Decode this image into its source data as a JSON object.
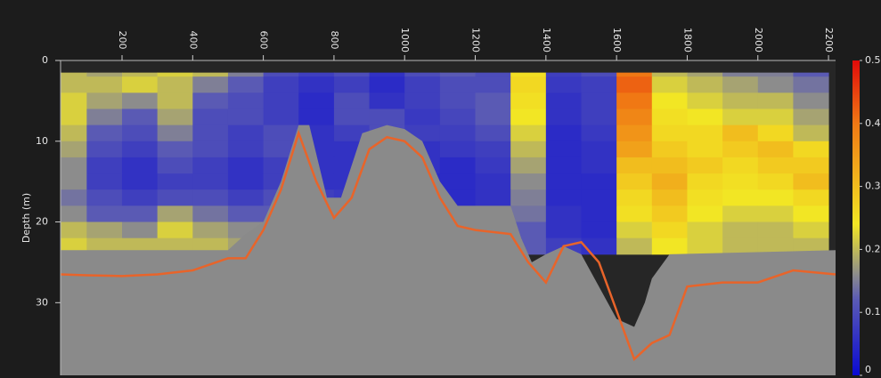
{
  "chart_data": {
    "type": "heatmap",
    "ylabel": "Depth (m)",
    "xlim": [
      26,
      2220
    ],
    "xticks": [
      200,
      400,
      600,
      800,
      1000,
      1200,
      1400,
      1600,
      1800,
      2000,
      2200
    ],
    "ylim": [
      0,
      39
    ],
    "yticks": [
      0,
      10,
      20,
      30
    ],
    "y_inverted": true,
    "data_top": 1.5,
    "columns": [
      0,
      100,
      200,
      300,
      400,
      500,
      600,
      700,
      800,
      900,
      1000,
      1100,
      1200,
      1300,
      1400,
      1500,
      1600,
      1700,
      1800,
      1900,
      2000,
      2100
    ],
    "column_width": 100,
    "rows": [
      2,
      4,
      6,
      8,
      10,
      12,
      14,
      16,
      18,
      20,
      22,
      24
    ],
    "row_height": 2,
    "z": [
      [
        0.2,
        0.18,
        0.2,
        0.22,
        0.2,
        0.15,
        0.1,
        0.08,
        0.1,
        0.06,
        0.1,
        0.12,
        0.1,
        0.25,
        0.08,
        0.1,
        0.4,
        0.2,
        0.18,
        0.15,
        0.15,
        0.12
      ],
      [
        0.2,
        0.2,
        0.22,
        0.2,
        0.15,
        0.12,
        0.08,
        0.06,
        0.08,
        0.05,
        0.08,
        0.1,
        0.1,
        0.26,
        0.07,
        0.08,
        0.42,
        0.22,
        0.2,
        0.18,
        0.16,
        0.14
      ],
      [
        0.22,
        0.18,
        0.16,
        0.2,
        0.12,
        0.1,
        0.08,
        0.05,
        0.1,
        0.06,
        0.08,
        0.1,
        0.12,
        0.25,
        0.06,
        0.08,
        0.4,
        0.24,
        0.22,
        0.2,
        0.2,
        0.16
      ],
      [
        0.22,
        0.15,
        0.12,
        0.18,
        0.1,
        0.1,
        0.08,
        0.05,
        0.1,
        0.1,
        0.07,
        0.09,
        0.12,
        0.24,
        0.06,
        0.08,
        0.38,
        0.25,
        0.24,
        0.22,
        0.22,
        0.18
      ],
      [
        0.2,
        0.12,
        0.1,
        0.15,
        0.1,
        0.08,
        0.1,
        0.06,
        0.08,
        0.1,
        0.08,
        0.08,
        0.1,
        0.22,
        0.05,
        0.07,
        0.36,
        0.26,
        0.26,
        0.3,
        0.26,
        0.2
      ],
      [
        0.18,
        0.1,
        0.08,
        0.12,
        0.1,
        0.08,
        0.1,
        0.06,
        0.06,
        0.08,
        0.06,
        0.07,
        0.08,
        0.2,
        0.05,
        0.06,
        0.34,
        0.28,
        0.26,
        0.28,
        0.3,
        0.26
      ],
      [
        0.16,
        0.08,
        0.06,
        0.1,
        0.08,
        0.06,
        0.08,
        0.06,
        0.06,
        0.08,
        0.06,
        0.05,
        0.07,
        0.18,
        0.05,
        0.06,
        0.3,
        0.3,
        0.28,
        0.26,
        0.28,
        0.28
      ],
      [
        0.16,
        0.08,
        0.06,
        0.08,
        0.08,
        0.06,
        0.08,
        0.06,
        0.06,
        0.08,
        0.05,
        0.05,
        0.06,
        0.16,
        0.05,
        0.05,
        0.28,
        0.32,
        0.26,
        0.25,
        0.26,
        0.3
      ],
      [
        0.14,
        0.1,
        0.08,
        0.1,
        0.1,
        0.08,
        0.1,
        0.08,
        0.07,
        0.08,
        0.06,
        0.05,
        0.06,
        0.15,
        0.05,
        0.05,
        0.26,
        0.3,
        0.25,
        0.24,
        0.24,
        0.26
      ],
      [
        0.16,
        0.12,
        0.12,
        0.18,
        0.14,
        0.12,
        0.12,
        0.1,
        0.08,
        0.08,
        0.06,
        0.06,
        0.08,
        0.14,
        0.06,
        0.05,
        0.25,
        0.28,
        0.24,
        0.22,
        0.22,
        0.24
      ],
      [
        0.2,
        0.18,
        0.16,
        0.22,
        0.18,
        0.16,
        0.14,
        0.1,
        0.08,
        0.08,
        0.06,
        0.06,
        0.1,
        0.12,
        0.06,
        0.05,
        0.22,
        0.26,
        0.22,
        0.2,
        0.2,
        0.22
      ],
      [
        0.22,
        0.2,
        0.2,
        0.2,
        0.2,
        0.18,
        0.14,
        0.1,
        0.08,
        0.08,
        0.08,
        0.08,
        0.1,
        0.12,
        0.08,
        0.06,
        0.2,
        0.24,
        0.22,
        0.2,
        0.2,
        0.2
      ]
    ],
    "colormap": [
      [
        0,
        "#0a0ad2"
      ],
      [
        0.12,
        "#5a5ab4"
      ],
      [
        0.16,
        "#8c8c8c"
      ],
      [
        0.24,
        "#f2e624"
      ],
      [
        0.4,
        "#f07814"
      ],
      [
        0.5,
        "#e00a0a"
      ]
    ],
    "zlim": [
      0,
      0.5
    ],
    "zticks": [
      0,
      0.1,
      0.2,
      0.3,
      0.4,
      0.5
    ],
    "seabed": {
      "color": "#8a8a8a",
      "x": [
        26,
        500,
        550,
        600,
        650,
        700,
        730,
        780,
        820,
        880,
        950,
        1000,
        1050,
        1100,
        1150,
        1300,
        1330,
        1360,
        1400,
        1450,
        1500,
        1550,
        1600,
        1650,
        1680,
        1700,
        1750,
        2220
      ],
      "values": [
        23.5,
        23.5,
        21.5,
        20,
        15,
        8,
        8,
        17,
        17,
        9,
        8,
        8.5,
        10,
        15,
        18,
        18,
        22,
        25,
        24,
        23,
        24,
        28,
        32,
        33,
        30,
        27,
        24,
        23.5
      ]
    },
    "bottom_line": {
      "color": "#e8642a",
      "x": [
        26,
        100,
        200,
        300,
        400,
        500,
        550,
        600,
        650,
        700,
        750,
        800,
        850,
        900,
        950,
        1000,
        1050,
        1100,
        1150,
        1200,
        1300,
        1350,
        1400,
        1450,
        1500,
        1550,
        1600,
        1650,
        1700,
        1750,
        1800,
        1900,
        2000,
        2100,
        2220
      ],
      "values": [
        26.5,
        26.6,
        26.7,
        26.5,
        26,
        24.5,
        24.5,
        21,
        16,
        9,
        15,
        19.5,
        17,
        11,
        9.5,
        10,
        12,
        17,
        20.5,
        21,
        21.5,
        25,
        27.5,
        23,
        22.5,
        25,
        31,
        37,
        35,
        34,
        28,
        27.5,
        27.5,
        26,
        26.5
      ]
    }
  }
}
